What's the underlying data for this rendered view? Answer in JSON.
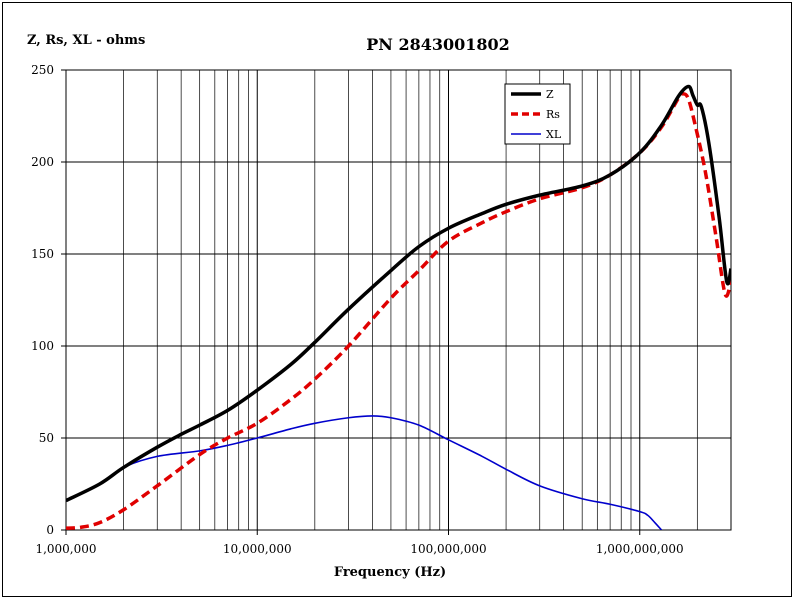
{
  "chart_data": {
    "type": "line",
    "title": "PN 2843001802",
    "ylabel": "Z, Rs, XL - ohms",
    "xlabel": "Frequency (Hz)",
    "x_scale": "log",
    "xlim": [
      1000000,
      3000000000
    ],
    "ylim": [
      0,
      250
    ],
    "y_ticks": [
      0,
      50,
      100,
      150,
      200,
      250
    ],
    "y_tick_labels": [
      "0",
      "50",
      "100",
      "150",
      "200",
      "250"
    ],
    "x_ticks": [
      1000000,
      10000000,
      100000000,
      1000000000
    ],
    "x_tick_labels": [
      "1,000,000",
      "10,000,000",
      "100,000,000",
      "1,000,000,000"
    ],
    "grid": true,
    "legend_position": "top-right",
    "colors": {
      "Z": "#000000",
      "Rs": "#e00000",
      "XL": "#0000cc"
    },
    "series": [
      {
        "name": "Z",
        "style": "solid-thick",
        "points": [
          [
            1000000,
            16
          ],
          [
            1500000,
            25
          ],
          [
            2000000,
            34
          ],
          [
            3000000,
            45
          ],
          [
            4000000,
            52
          ],
          [
            5000000,
            57
          ],
          [
            7000000,
            65
          ],
          [
            10000000,
            76
          ],
          [
            15000000,
            90
          ],
          [
            20000000,
            102
          ],
          [
            30000000,
            120
          ],
          [
            50000000,
            141
          ],
          [
            70000000,
            154
          ],
          [
            100000000,
            164
          ],
          [
            150000000,
            172
          ],
          [
            200000000,
            177
          ],
          [
            300000000,
            182
          ],
          [
            500000000,
            187
          ],
          [
            700000000,
            193
          ],
          [
            1000000000,
            205
          ],
          [
            1300000000,
            220
          ],
          [
            1600000000,
            236
          ],
          [
            1800000000,
            241
          ],
          [
            1900000000,
            236
          ],
          [
            2000000000,
            231
          ],
          [
            2100000000,
            230
          ],
          [
            2300000000,
            210
          ],
          [
            2600000000,
            170
          ],
          [
            2850000000,
            135
          ],
          [
            3000000000,
            142
          ]
        ]
      },
      {
        "name": "Rs",
        "style": "dashed-thick",
        "points": [
          [
            1000000,
            1
          ],
          [
            1200000,
            1.5
          ],
          [
            1500000,
            4
          ],
          [
            2000000,
            11
          ],
          [
            3000000,
            24
          ],
          [
            5000000,
            41
          ],
          [
            7000000,
            50
          ],
          [
            10000000,
            58
          ],
          [
            15000000,
            71
          ],
          [
            20000000,
            82
          ],
          [
            30000000,
            100
          ],
          [
            50000000,
            126
          ],
          [
            70000000,
            141
          ],
          [
            100000000,
            157
          ],
          [
            150000000,
            167
          ],
          [
            200000000,
            173
          ],
          [
            300000000,
            180
          ],
          [
            500000000,
            186
          ],
          [
            700000000,
            193
          ],
          [
            1000000000,
            205
          ],
          [
            1300000000,
            219
          ],
          [
            1600000000,
            235
          ],
          [
            1700000000,
            237
          ],
          [
            1800000000,
            234
          ],
          [
            1950000000,
            220
          ],
          [
            2200000000,
            195
          ],
          [
            2500000000,
            160
          ],
          [
            2800000000,
            128
          ],
          [
            3000000000,
            136
          ]
        ]
      },
      {
        "name": "XL",
        "style": "solid-thin",
        "points": [
          [
            1000000,
            16
          ],
          [
            1500000,
            25
          ],
          [
            2000000,
            34
          ],
          [
            3000000,
            40
          ],
          [
            5000000,
            43
          ],
          [
            7000000,
            46
          ],
          [
            10000000,
            50
          ],
          [
            15000000,
            55
          ],
          [
            20000000,
            58
          ],
          [
            30000000,
            61
          ],
          [
            40000000,
            62
          ],
          [
            50000000,
            61
          ],
          [
            70000000,
            57
          ],
          [
            100000000,
            49
          ],
          [
            150000000,
            40
          ],
          [
            200000000,
            33
          ],
          [
            300000000,
            24
          ],
          [
            500000000,
            17
          ],
          [
            700000000,
            14
          ],
          [
            1000000000,
            10
          ],
          [
            1100000000,
            8
          ],
          [
            1200000000,
            4
          ],
          [
            1300000000,
            0
          ]
        ]
      }
    ]
  }
}
